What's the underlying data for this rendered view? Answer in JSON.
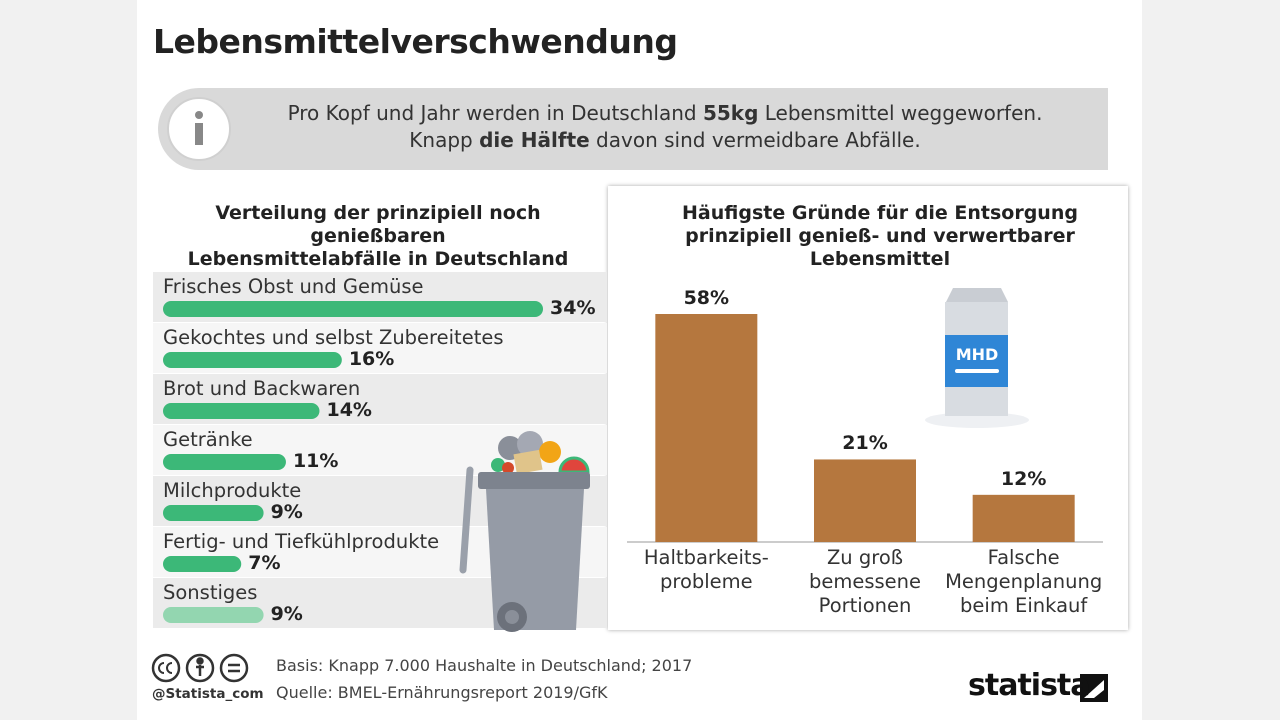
{
  "title": "Lebensmittelverschwendung",
  "info": {
    "line1": [
      "Pro Kopf und Jahr werden in Deutschland ",
      "55kg",
      " Lebensmittel weggeworfen."
    ],
    "line2": [
      "Knapp ",
      "die Hälfte",
      " davon sind vermeidbare Abfälle."
    ]
  },
  "chart_data": [
    {
      "type": "bar",
      "orientation": "horizontal",
      "title": "Verteilung der prinzipiell noch genießbaren\nLebensmittelabfälle in Deutschland",
      "categories": [
        "Frisches Obst und Gemüse",
        "Gekochtes und selbst Zubereitetes",
        "Brot und Backwaren",
        "Getränke",
        "Milchprodukte",
        "Fertig- und Tiefkühlprodukte",
        "Sonstiges"
      ],
      "values": [
        34,
        16,
        14,
        11,
        9,
        7,
        9
      ],
      "value_labels": [
        "34%",
        "16%",
        "14%",
        "11%",
        "9%",
        "7%",
        "9%"
      ],
      "colors": [
        "#3cb878",
        "#3cb878",
        "#3cb878",
        "#3cb878",
        "#3cb878",
        "#3cb878",
        "#93d6b0"
      ]
    },
    {
      "type": "bar",
      "orientation": "vertical",
      "title": "Häufigste Gründe für die Entsorgung\nprinzipiell genieß- und verwertbarer\nLebensmittel",
      "categories": [
        "Haltbarkeits-\nprobleme",
        "Zu groß\nbemessene\nPortionen",
        "Falsche\nMengenplanung\nbeim Einkauf"
      ],
      "values": [
        58,
        21,
        12
      ],
      "value_labels": [
        "58%",
        "21%",
        "12%"
      ],
      "color": "#b5773e"
    }
  ],
  "illustration": {
    "carton_label": "MHD"
  },
  "footer": {
    "handle": "@Statista_com",
    "basis": "Basis: Knapp 7.000 Haushalte in Deutschland; 2017",
    "source": "Quelle: BMEL-Ernährungsreport 2019/GfK",
    "brand": "statista"
  }
}
